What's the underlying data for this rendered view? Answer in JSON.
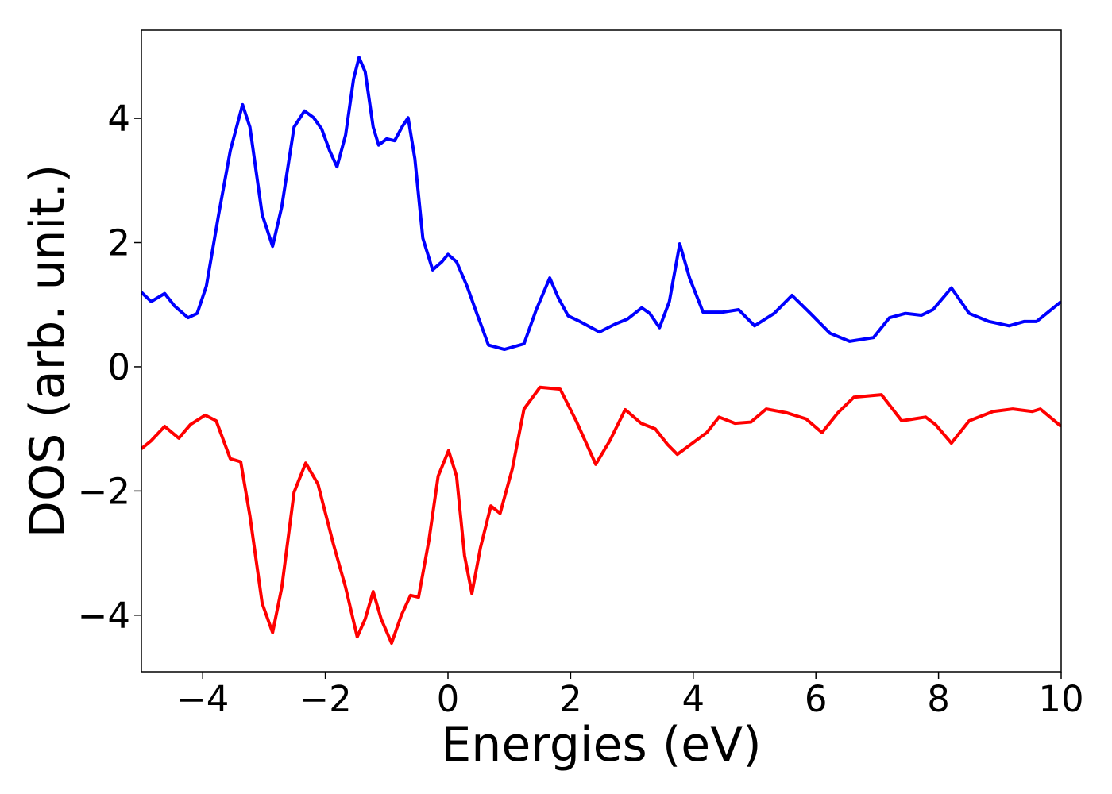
{
  "chart_data": {
    "type": "line",
    "xlabel": "Energies (eV)",
    "ylabel": "DOS (arb. unit.)",
    "xlim": [
      -5,
      10
    ],
    "ylim": [
      -4.91,
      5.42
    ],
    "xticks": [
      {
        "value": -4,
        "label": "−4"
      },
      {
        "value": -2,
        "label": "−2"
      },
      0,
      2,
      4,
      6,
      8,
      10
    ],
    "yticks": [
      {
        "value": -4,
        "label": "−4"
      },
      {
        "value": -2,
        "label": "−2"
      },
      0,
      2,
      4
    ],
    "grid": false,
    "series": [
      {
        "color": "#0000ff",
        "x": [
          -5,
          -4.84,
          -4.62,
          -4.46,
          -4.24,
          -4.09,
          -3.94,
          -3.74,
          -3.55,
          -3.35,
          -3.23,
          -3.03,
          -2.86,
          -2.71,
          -2.51,
          -2.34,
          -2.19,
          -2.06,
          -1.93,
          -1.81,
          -1.67,
          -1.54,
          -1.45,
          -1.35,
          -1.22,
          -1.13,
          -1.0,
          -0.87,
          -0.75,
          -0.65,
          -0.54,
          -0.41,
          -0.25,
          -0.1,
          0,
          0.14,
          0.31,
          0.47,
          0.66,
          0.92,
          1.24,
          1.44,
          1.66,
          1.8,
          1.96,
          2.15,
          2.47,
          2.73,
          2.93,
          3.16,
          3.29,
          3.45,
          3.61,
          3.78,
          3.94,
          4.16,
          4.48,
          4.74,
          5.0,
          5.32,
          5.61,
          5.91,
          6.23,
          6.55,
          6.94,
          7.2,
          7.46,
          7.72,
          7.91,
          8.21,
          8.5,
          8.82,
          9.15,
          9.4,
          9.6,
          10
        ],
        "values": [
          1.2,
          1.05,
          1.18,
          0.98,
          0.79,
          0.86,
          1.3,
          2.45,
          3.48,
          4.22,
          3.86,
          2.45,
          1.94,
          2.58,
          3.86,
          4.12,
          4.01,
          3.83,
          3.48,
          3.22,
          3.73,
          4.63,
          4.98,
          4.75,
          3.86,
          3.57,
          3.67,
          3.64,
          3.86,
          4.01,
          3.35,
          2.07,
          1.56,
          1.69,
          1.81,
          1.69,
          1.3,
          0.86,
          0.35,
          0.28,
          0.37,
          0.92,
          1.43,
          1.11,
          0.82,
          0.73,
          0.56,
          0.69,
          0.77,
          0.95,
          0.86,
          0.63,
          1.05,
          1.98,
          1.43,
          0.88,
          0.88,
          0.92,
          0.66,
          0.86,
          1.15,
          0.86,
          0.54,
          0.41,
          0.47,
          0.79,
          0.86,
          0.83,
          0.92,
          1.27,
          0.86,
          0.73,
          0.66,
          0.73,
          0.73,
          1.05
        ]
      },
      {
        "color": "#ff0000",
        "x": [
          -5,
          -4.84,
          -4.62,
          -4.39,
          -4.2,
          -3.96,
          -3.78,
          -3.55,
          -3.38,
          -3.23,
          -3.03,
          -2.86,
          -2.71,
          -2.51,
          -2.32,
          -2.12,
          -1.87,
          -1.67,
          -1.48,
          -1.35,
          -1.22,
          -1.09,
          -0.92,
          -0.76,
          -0.61,
          -0.48,
          -0.31,
          -0.16,
          0.01,
          0.14,
          0.27,
          0.39,
          0.53,
          0.7,
          0.85,
          1.05,
          1.24,
          1.5,
          1.83,
          2.09,
          2.41,
          2.64,
          2.89,
          3.15,
          3.38,
          3.58,
          3.74,
          3.96,
          4.22,
          4.42,
          4.68,
          4.94,
          5.19,
          5.52,
          5.84,
          6.1,
          6.36,
          6.62,
          7.07,
          7.4,
          7.79,
          7.95,
          8.21,
          8.5,
          8.89,
          9.21,
          9.53,
          9.66,
          10
        ],
        "values": [
          -1.32,
          -1.19,
          -0.96,
          -1.15,
          -0.93,
          -0.78,
          -0.87,
          -1.48,
          -1.53,
          -2.4,
          -3.81,
          -4.28,
          -3.55,
          -2.02,
          -1.55,
          -1.89,
          -2.85,
          -3.55,
          -4.35,
          -4.06,
          -3.62,
          -4.06,
          -4.45,
          -4.0,
          -3.68,
          -3.71,
          -2.79,
          -1.76,
          -1.35,
          -1.76,
          -3.04,
          -3.65,
          -2.91,
          -2.24,
          -2.36,
          -1.64,
          -0.68,
          -0.33,
          -0.36,
          -0.87,
          -1.57,
          -1.19,
          -0.69,
          -0.91,
          -1.0,
          -1.25,
          -1.41,
          -1.25,
          -1.06,
          -0.81,
          -0.91,
          -0.89,
          -0.68,
          -0.74,
          -0.84,
          -1.06,
          -0.74,
          -0.49,
          -0.45,
          -0.87,
          -0.81,
          -0.93,
          -1.23,
          -0.87,
          -0.72,
          -0.68,
          -0.72,
          -0.68,
          -0.96
        ]
      }
    ]
  }
}
